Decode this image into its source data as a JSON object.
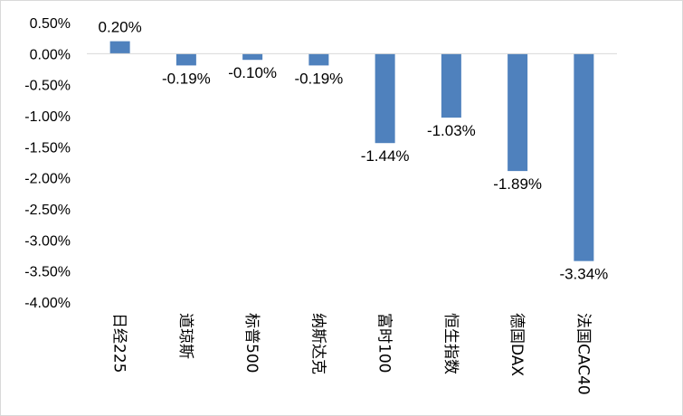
{
  "chart_data": {
    "type": "bar",
    "title": "",
    "xlabel": "",
    "ylabel": "",
    "categories": [
      "日经225",
      "道琼斯",
      "标普500",
      "纳斯达克",
      "富时100",
      "恒生指数",
      "德国DAX",
      "法国CAC40"
    ],
    "values": [
      0.2,
      -0.19,
      -0.1,
      -0.19,
      -1.44,
      -1.03,
      -1.89,
      -3.34
    ],
    "data_labels": [
      "0.20%",
      "-0.19%",
      "-0.10%",
      "-0.19%",
      "-1.44%",
      "-1.03%",
      "-1.89%",
      "-3.34%"
    ],
    "ylim": [
      -4.0,
      0.5
    ],
    "y_ticks": [
      {
        "value": 0.5,
        "label": "0.50%"
      },
      {
        "value": 0.0,
        "label": "0.00%"
      },
      {
        "value": -0.5,
        "label": "-0.50%"
      },
      {
        "value": -1.0,
        "label": "-1.00%"
      },
      {
        "value": -1.5,
        "label": "-1.50%"
      },
      {
        "value": -2.0,
        "label": "-2.00%"
      },
      {
        "value": -2.5,
        "label": "-2.50%"
      },
      {
        "value": -3.0,
        "label": "-3.00%"
      },
      {
        "value": -3.5,
        "label": "-3.50%"
      },
      {
        "value": -4.0,
        "label": "-4.00%"
      }
    ],
    "grid": false,
    "legend": "none",
    "bar_color": "#4f81bd"
  }
}
